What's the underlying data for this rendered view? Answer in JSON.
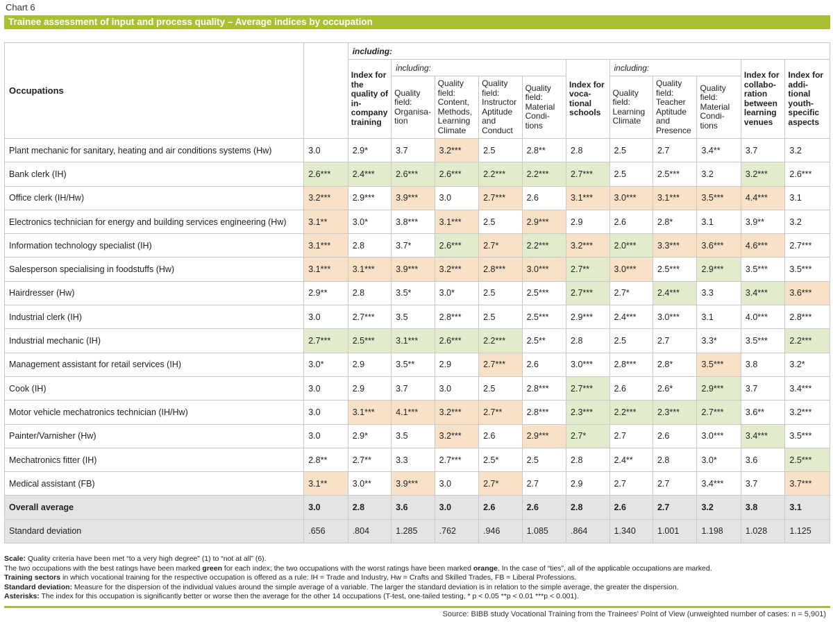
{
  "chart_label": "Chart 6",
  "title": "Trainee assessment of input and process quality – Average indices by occupation",
  "header": {
    "including_top": "including:",
    "occupations": "Occupations",
    "including_sub1": "including:",
    "including_sub2": "including:",
    "col_index_company": "Index for the quality of in-company training",
    "col_q_org": "Quality field: Organisa-tion",
    "col_q_content": "Quality field: Content, Methods, Learning Climate",
    "col_q_instructor": "Quality field: Instructor Aptitude and Conduct",
    "col_q_material": "Quality field: Material Condi-tions",
    "col_index_school": "Index for voca-tional schools",
    "col_q_learning": "Quality field: Learning Climate",
    "col_q_teacher": "Quality field: Teacher Aptitude and Presence",
    "col_q_material2": "Quality field: Material Condi-tions",
    "col_index_collab": "Index for collabo-ration between learning venues",
    "col_index_youth": "Index for addi-tional youth-specific aspects"
  },
  "rows": [
    {
      "name": "Plant mechanic for sanitary, heating and air conditions systems (Hw)",
      "values": [
        "3.0",
        "2.9*",
        "3.7",
        "3.2***",
        "2.5",
        "2.8**",
        "2.8",
        "2.5",
        "2.7",
        "3.4**",
        "3.7",
        "3.2"
      ],
      "marks": [
        "",
        "",
        "",
        "o",
        "",
        "",
        "",
        "",
        "",
        "",
        "",
        ""
      ]
    },
    {
      "name": "Bank clerk (IH)",
      "values": [
        "2.6***",
        "2.4***",
        "2.6***",
        "2.6***",
        "2.2***",
        "2.2***",
        "2.7***",
        "2.5",
        "2.5***",
        "3.2",
        "3.2***",
        "2.6***"
      ],
      "marks": [
        "g",
        "g",
        "g",
        "g",
        "g",
        "g",
        "g",
        "",
        "",
        "",
        "g",
        ""
      ]
    },
    {
      "name": "Office clerk (IH/Hw)",
      "values": [
        "3.2***",
        "2.9***",
        "3.9***",
        "3.0",
        "2.7***",
        "2.6",
        "3.1***",
        "3.0***",
        "3.1***",
        "3.5***",
        "4.4***",
        "3.1"
      ],
      "marks": [
        "o",
        "",
        "o",
        "",
        "o",
        "",
        "o",
        "o",
        "o",
        "o",
        "o",
        ""
      ]
    },
    {
      "name": "Electronics technician for energy and building services engineering (Hw)",
      "values": [
        "3.1**",
        "3.0*",
        "3.8***",
        "3.1***",
        "2.5",
        "2.9***",
        "2.9",
        "2.6",
        "2.8*",
        "3.1",
        "3.9**",
        "3.2"
      ],
      "marks": [
        "o",
        "",
        "",
        "o",
        "",
        "o",
        "",
        "",
        "",
        "",
        "",
        ""
      ]
    },
    {
      "name": "Information technology specialist (IH)",
      "values": [
        "3.1***",
        "2.8",
        "3.7*",
        "2.6***",
        "2.7*",
        "2.2***",
        "3.2***",
        "2.0***",
        "3.3***",
        "3.6***",
        "4.6***",
        "2.7***"
      ],
      "marks": [
        "o",
        "",
        "",
        "g",
        "o",
        "g",
        "o",
        "g",
        "o",
        "o",
        "o",
        ""
      ]
    },
    {
      "name": "Salesperson specialising in foodstuffs (Hw)",
      "values": [
        "3.1***",
        "3.1***",
        "3.9***",
        "3.2***",
        "2.8***",
        "3.0***",
        "2.7**",
        "3.0***",
        "2.5***",
        "2.9***",
        "3.5***",
        "3.5***"
      ],
      "marks": [
        "o",
        "o",
        "o",
        "o",
        "o",
        "o",
        "g",
        "o",
        "",
        "g",
        "",
        ""
      ]
    },
    {
      "name": "Hairdresser (Hw)",
      "values": [
        "2.9**",
        "2.8",
        "3.5*",
        "3.0*",
        "2.5",
        "2.5***",
        "2.7***",
        "2.7*",
        "2.4***",
        "3.3",
        "3.4***",
        "3.6***"
      ],
      "marks": [
        "",
        "",
        "",
        "",
        "",
        "",
        "g",
        "",
        "g",
        "",
        "g",
        "o"
      ]
    },
    {
      "name": "Industrial clerk (IH)",
      "values": [
        "3.0",
        "2.7***",
        "3.5",
        "2.8***",
        "2.5",
        "2.5***",
        "2.9***",
        "2.4***",
        "3.0***",
        "3.1",
        "4.0***",
        "2.8***"
      ],
      "marks": [
        "",
        "",
        "",
        "",
        "",
        "",
        "",
        "",
        "",
        "",
        "",
        ""
      ]
    },
    {
      "name": "Industrial mechanic (IH)",
      "values": [
        "2.7***",
        "2.5***",
        "3.1***",
        "2.6***",
        "2.2***",
        "2.5**",
        "2.8",
        "2.5",
        "2.7",
        "3.3*",
        "3.5***",
        "2.2***"
      ],
      "marks": [
        "g",
        "g",
        "g",
        "g",
        "g",
        "",
        "",
        "",
        "",
        "",
        "",
        "g"
      ]
    },
    {
      "name": "Management assistant for retail services (IH)",
      "values": [
        "3.0*",
        "2.9",
        "3.5**",
        "2.9",
        "2.7***",
        "2.6",
        "3.0***",
        "2.8***",
        "2.8*",
        "3.5***",
        "3.8",
        "3.2*"
      ],
      "marks": [
        "",
        "",
        "",
        "",
        "o",
        "",
        "",
        "",
        "",
        "o",
        "",
        ""
      ]
    },
    {
      "name": "Cook (IH)",
      "values": [
        "3.0",
        "2.9",
        "3.7",
        "3.0",
        "2.5",
        "2.8***",
        "2.7***",
        "2.6",
        "2.6*",
        "2.9***",
        "3.7",
        "3.4***"
      ],
      "marks": [
        "",
        "",
        "",
        "",
        "",
        "",
        "g",
        "",
        "",
        "g",
        "",
        ""
      ]
    },
    {
      "name": "Motor vehicle mechatronics technician (IH/Hw)",
      "values": [
        "3.0",
        "3.1***",
        "4.1***",
        "3.2***",
        "2.7**",
        "2.8***",
        "2.3***",
        "2.2***",
        "2.3***",
        "2.7***",
        "3.6**",
        "3.2***"
      ],
      "marks": [
        "",
        "o",
        "o",
        "o",
        "o",
        "",
        "g",
        "g",
        "g",
        "g",
        "",
        ""
      ]
    },
    {
      "name": "Painter/Varnisher (Hw)",
      "values": [
        "3.0",
        "2.9*",
        "3.5",
        "3.2***",
        "2.6",
        "2.9***",
        "2.7*",
        "2.7",
        "2.6",
        "3.0***",
        "3.4***",
        "3.5***"
      ],
      "marks": [
        "",
        "",
        "",
        "o",
        "",
        "o",
        "g",
        "",
        "",
        "",
        "g",
        ""
      ]
    },
    {
      "name": "Mechatronics fitter (IH)",
      "values": [
        "2.8**",
        "2.7**",
        "3.3",
        "2.7***",
        "2.5*",
        "2.5",
        "2.8",
        "2.4**",
        "2.8",
        "3.0*",
        "3.6",
        "2.5***"
      ],
      "marks": [
        "",
        "",
        "",
        "",
        "",
        "",
        "",
        "",
        "",
        "",
        "",
        "g"
      ]
    },
    {
      "name": "Medical assistant (FB)",
      "values": [
        "3.1**",
        "3.0**",
        "3.9***",
        "3.0",
        "2.7*",
        "2.7",
        "2.9",
        "2.7",
        "2.7",
        "3.4***",
        "3.7",
        "3.7***"
      ],
      "marks": [
        "o",
        "",
        "o",
        "",
        "o",
        "",
        "",
        "",
        "",
        "",
        "",
        "o"
      ]
    }
  ],
  "overall": {
    "name": "Overall average",
    "values": [
      "3.0",
      "2.8",
      "3.6",
      "3.0",
      "2.6",
      "2.6",
      "2.8",
      "2.6",
      "2.7",
      "3.2",
      "3.8",
      "3.1"
    ]
  },
  "stddev": {
    "name": "Standard deviation",
    "values": [
      ".656",
      ".804",
      "1.285",
      ".762",
      ".946",
      "1.085",
      ".864",
      "1.340",
      "1.001",
      "1.198",
      "1.028",
      "1.125"
    ]
  },
  "notes": {
    "scale_label": "Scale:",
    "scale_text": " Quality criteria have been met “to a very high degree” (1) to “not at all” (6).",
    "marking_text_1": "The two occupations with the best ratings have been marked ",
    "marking_green": "green",
    "marking_text_2": " for each index; the two occupations with the worst ratings have been marked ",
    "marking_orange": "orange",
    "marking_text_3": ". In the case of “ties”, all of the applicable occupations are marked.",
    "sectors_label": "Training sectors",
    "sectors_text": " in which vocational training for the respective occupation is offered as a rule: IH = Trade and Industry, Hw = Crafts and Skilled Trades, FB = Liberal Professions.",
    "sd_label": "Standard deviation:",
    "sd_text": " Measure for the dispersion of the individual values around the simple average of a variable. The larger the standard deviation is in relation to the simple average, the greater the dispersion.",
    "ast_label": "Asterisks:",
    "ast_text": " The index for this occupation is significantly better or worse then the average for the other 14 occupations (T-test, one-tailed testing, * p < 0.05  **p < 0.01  ***p < 0.001)."
  },
  "source": "Source: BIBB study Vocational Training from the Trainees’ Point of View (unweighted number of cases: n = 5,901)",
  "colors": {
    "accent": "#a7c133",
    "green_mark": "#e2eccd",
    "orange_mark": "#f8e1c6",
    "gray_row": "#e4e4e4"
  }
}
